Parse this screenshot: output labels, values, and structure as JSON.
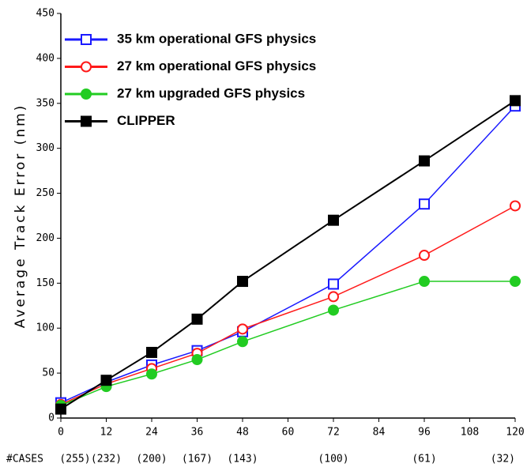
{
  "chart_data": {
    "type": "line",
    "y_label": "Average Track Error (nm)",
    "x": [
      0,
      12,
      24,
      36,
      48,
      72,
      96,
      120
    ],
    "cases_label": "#CASES",
    "cases": [
      "(255)",
      "(232)",
      "(200)",
      "(167)",
      "(143)",
      "(100)",
      "(61)",
      "(32)"
    ],
    "xlim": [
      0,
      120
    ],
    "xticks": [
      0,
      12,
      24,
      36,
      48,
      60,
      72,
      84,
      96,
      108,
      120
    ],
    "ylim": [
      0,
      450
    ],
    "yticks": [
      0,
      50,
      100,
      150,
      200,
      250,
      300,
      350,
      400,
      450
    ],
    "grid": false,
    "legend": "upper-left",
    "series": [
      {
        "name": "35 km operational GFS physics",
        "color": "#1a1aff",
        "marker": "square",
        "filled": false,
        "values": [
          17,
          40,
          59,
          75,
          96,
          149,
          238,
          347
        ]
      },
      {
        "name": "27 km operational GFS physics",
        "color": "#ff1a1a",
        "marker": "circle",
        "filled": false,
        "values": [
          15,
          38,
          55,
          72,
          99,
          135,
          181,
          236
        ]
      },
      {
        "name": "27 km upgraded GFS physics",
        "color": "#22cc22",
        "marker": "circle",
        "filled": true,
        "values": [
          14,
          35,
          49,
          65,
          85,
          120,
          152,
          152
        ]
      },
      {
        "name": "CLIPPER",
        "color": "#000000",
        "marker": "square",
        "filled": true,
        "values": [
          10,
          42,
          73,
          110,
          152,
          220,
          286,
          353
        ]
      }
    ]
  }
}
